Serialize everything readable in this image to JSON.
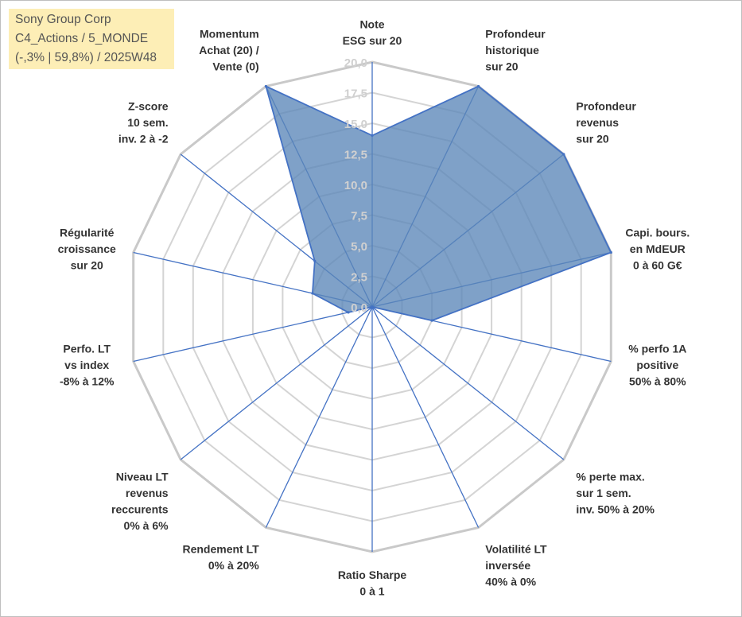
{
  "window": {
    "title_lines": [
      "Sony Group Corp",
      "C4_Actions / 5_MONDE",
      "(-,3% | 59,8%) / 2025W48"
    ]
  },
  "colors": {
    "fill": "#5b86b8",
    "stroke": "#4472c4",
    "grid": "#d4d4d4",
    "tick": "#d0d0d0",
    "label": "#333333",
    "title_bg": "#fdeeb6"
  },
  "chart_data": {
    "type": "radar",
    "title": "Sony Group Corp",
    "rlim": [
      0,
      20
    ],
    "ticks": [
      "0,0",
      "2,5",
      "5,0",
      "7,5",
      "10,0",
      "12,5",
      "15,0",
      "17,5",
      "20,0"
    ],
    "tick_values": [
      0,
      2.5,
      5,
      7.5,
      10,
      12.5,
      15,
      17.5,
      20
    ],
    "grid": true,
    "axes": [
      {
        "lines": [
          "Note",
          "ESG sur 20"
        ],
        "value": 14
      },
      {
        "lines": [
          "Profondeur",
          "historique",
          "sur 20"
        ],
        "value": 20
      },
      {
        "lines": [
          "Profondeur",
          "revenus",
          "sur 20"
        ],
        "value": 20
      },
      {
        "lines": [
          "Capi. bours.",
          "en MdEUR",
          "0 à 60 G€"
        ],
        "value": 20
      },
      {
        "lines": [
          "% perfo 1A",
          "positive",
          "50% à 80%"
        ],
        "value": 5
      },
      {
        "lines": [
          "% perte max.",
          "sur 1 sem.",
          "inv. 50% à 20%"
        ],
        "value": 0
      },
      {
        "lines": [
          "Volatilité LT",
          "inversée",
          "40% à 0%"
        ],
        "value": 0
      },
      {
        "lines": [
          "Ratio Sharpe",
          "0 à 1"
        ],
        "value": 0
      },
      {
        "lines": [
          "Rendement LT",
          "0% à 20%"
        ],
        "value": 0
      },
      {
        "lines": [
          "Niveau LT",
          "revenus",
          "reccurents",
          "0% à 6%"
        ],
        "value": 0
      },
      {
        "lines": [
          "Perfo. LT",
          "vs index",
          "-8% à 12%"
        ],
        "value": 2
      },
      {
        "lines": [
          "Régularité",
          "croissance",
          "sur 20"
        ],
        "value": 5
      },
      {
        "lines": [
          "Z-score",
          "10 sem.",
          "inv. 2 à -2"
        ],
        "value": 6
      },
      {
        "lines": [
          "Momentum",
          "Achat (20) /",
          "Vente (0)"
        ],
        "value": 20
      }
    ],
    "series": [
      {
        "name": "Sony Group Corp",
        "values": [
          14,
          20,
          20,
          20,
          5,
          0,
          0,
          0,
          0,
          0,
          2,
          5,
          6,
          20
        ]
      }
    ]
  }
}
